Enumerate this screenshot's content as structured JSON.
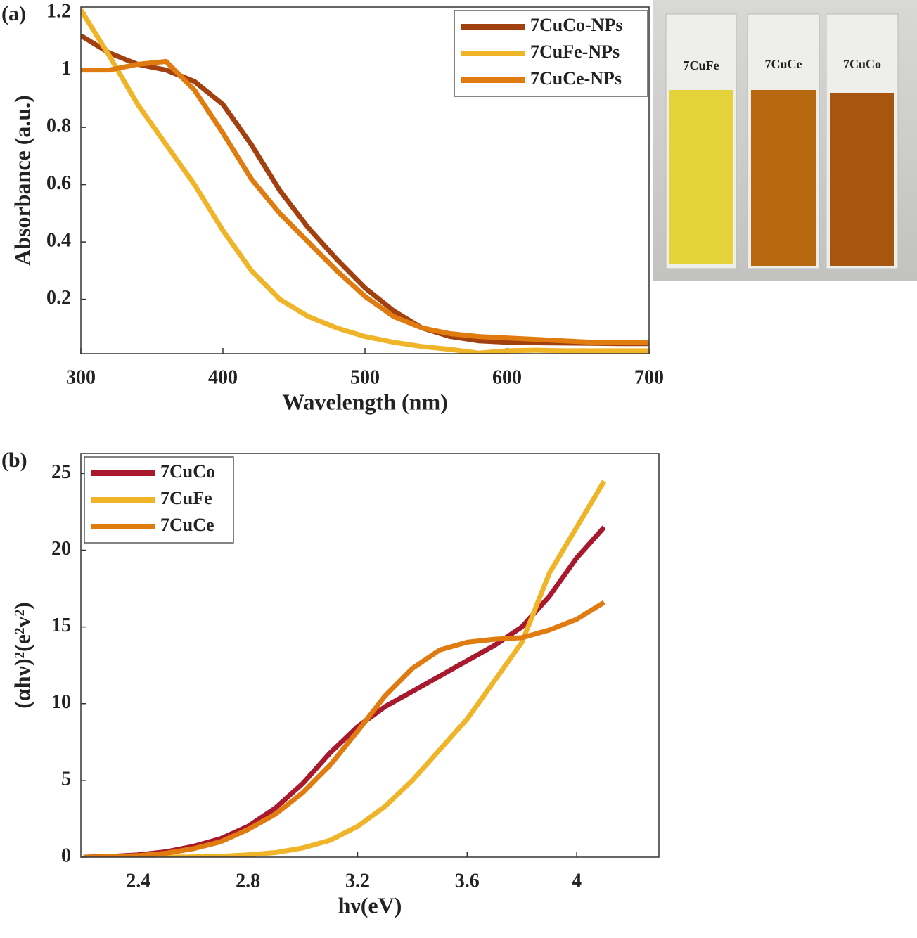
{
  "chart_data": [
    {
      "type": "line",
      "panel_label": "(a)",
      "x_label": "Wavelength (nm)",
      "y_label": "Absorbance (a.u.)",
      "x": [
        300,
        320,
        340,
        360,
        380,
        400,
        420,
        440,
        460,
        480,
        500,
        520,
        540,
        560,
        580,
        600,
        620,
        640,
        660,
        680,
        700
      ],
      "series": [
        {
          "name": "7CuCo-NPs",
          "color": "#a3400f",
          "values": [
            1.12,
            1.06,
            1.02,
            1.0,
            0.96,
            0.88,
            0.74,
            0.58,
            0.45,
            0.34,
            0.24,
            0.16,
            0.1,
            0.07,
            0.055,
            0.05,
            0.048,
            0.047,
            0.046,
            0.045,
            0.045
          ]
        },
        {
          "name": "7CuFe-NPs",
          "color": "#f0b429",
          "values": [
            1.21,
            1.05,
            0.88,
            0.74,
            0.6,
            0.44,
            0.3,
            0.2,
            0.14,
            0.1,
            0.07,
            0.05,
            0.035,
            0.025,
            0.012,
            0.02,
            0.022,
            0.02,
            0.02,
            0.02,
            0.02
          ]
        },
        {
          "name": "7CuCe-NPs",
          "color": "#e07b10",
          "values": [
            1.0,
            1.0,
            1.02,
            1.03,
            0.93,
            0.78,
            0.62,
            0.5,
            0.4,
            0.3,
            0.21,
            0.14,
            0.1,
            0.08,
            0.07,
            0.065,
            0.06,
            0.055,
            0.05,
            0.05,
            0.05
          ]
        }
      ],
      "xlim": [
        300,
        700
      ],
      "xticks": [
        300,
        400,
        500,
        600,
        700
      ],
      "ylim": [
        0.01,
        1.22
      ],
      "yticks": [
        0.2,
        0.4,
        0.6,
        0.8,
        1,
        1.2
      ],
      "legend": "upper right"
    },
    {
      "type": "line",
      "panel_label": "(b)",
      "x_label": "hν(eV)",
      "y_label": "(αhν)²(e²v²)",
      "x": [
        2.2,
        2.3,
        2.4,
        2.5,
        2.6,
        2.7,
        2.8,
        2.9,
        3.0,
        3.1,
        3.2,
        3.3,
        3.4,
        3.5,
        3.6,
        3.7,
        3.8,
        3.9,
        4.0,
        4.1
      ],
      "series": [
        {
          "name": "7CuCo",
          "color": "#a8192e",
          "values": [
            0,
            0.05,
            0.15,
            0.35,
            0.7,
            1.2,
            2.0,
            3.2,
            4.8,
            6.8,
            8.5,
            9.8,
            10.8,
            11.8,
            12.8,
            13.8,
            15.0,
            17.0,
            19.5,
            21.5
          ]
        },
        {
          "name": "7CuFe",
          "color": "#f0b429",
          "values": [
            0,
            0,
            0,
            0,
            0.02,
            0.05,
            0.15,
            0.3,
            0.6,
            1.1,
            2.0,
            3.3,
            5.0,
            7.0,
            9.0,
            11.5,
            14.0,
            18.5,
            21.5,
            24.5
          ]
        },
        {
          "name": "7CuCe",
          "color": "#e07b10",
          "values": [
            0,
            0.03,
            0.1,
            0.25,
            0.55,
            1.0,
            1.8,
            2.8,
            4.2,
            6.0,
            8.2,
            10.5,
            12.3,
            13.5,
            14.0,
            14.2,
            14.3,
            14.8,
            15.5,
            16.6
          ]
        }
      ],
      "xlim": [
        2.19,
        4.3
      ],
      "xticks": [
        2.4,
        2.8,
        3.2,
        3.6,
        4
      ],
      "ylim": [
        0,
        26.3
      ],
      "yticks": [
        0,
        5,
        10,
        15,
        20,
        25
      ],
      "legend": "upper left"
    }
  ],
  "inset_photo": {
    "labels": [
      "7CuFe",
      "7CuCe",
      "7CuCo"
    ]
  }
}
